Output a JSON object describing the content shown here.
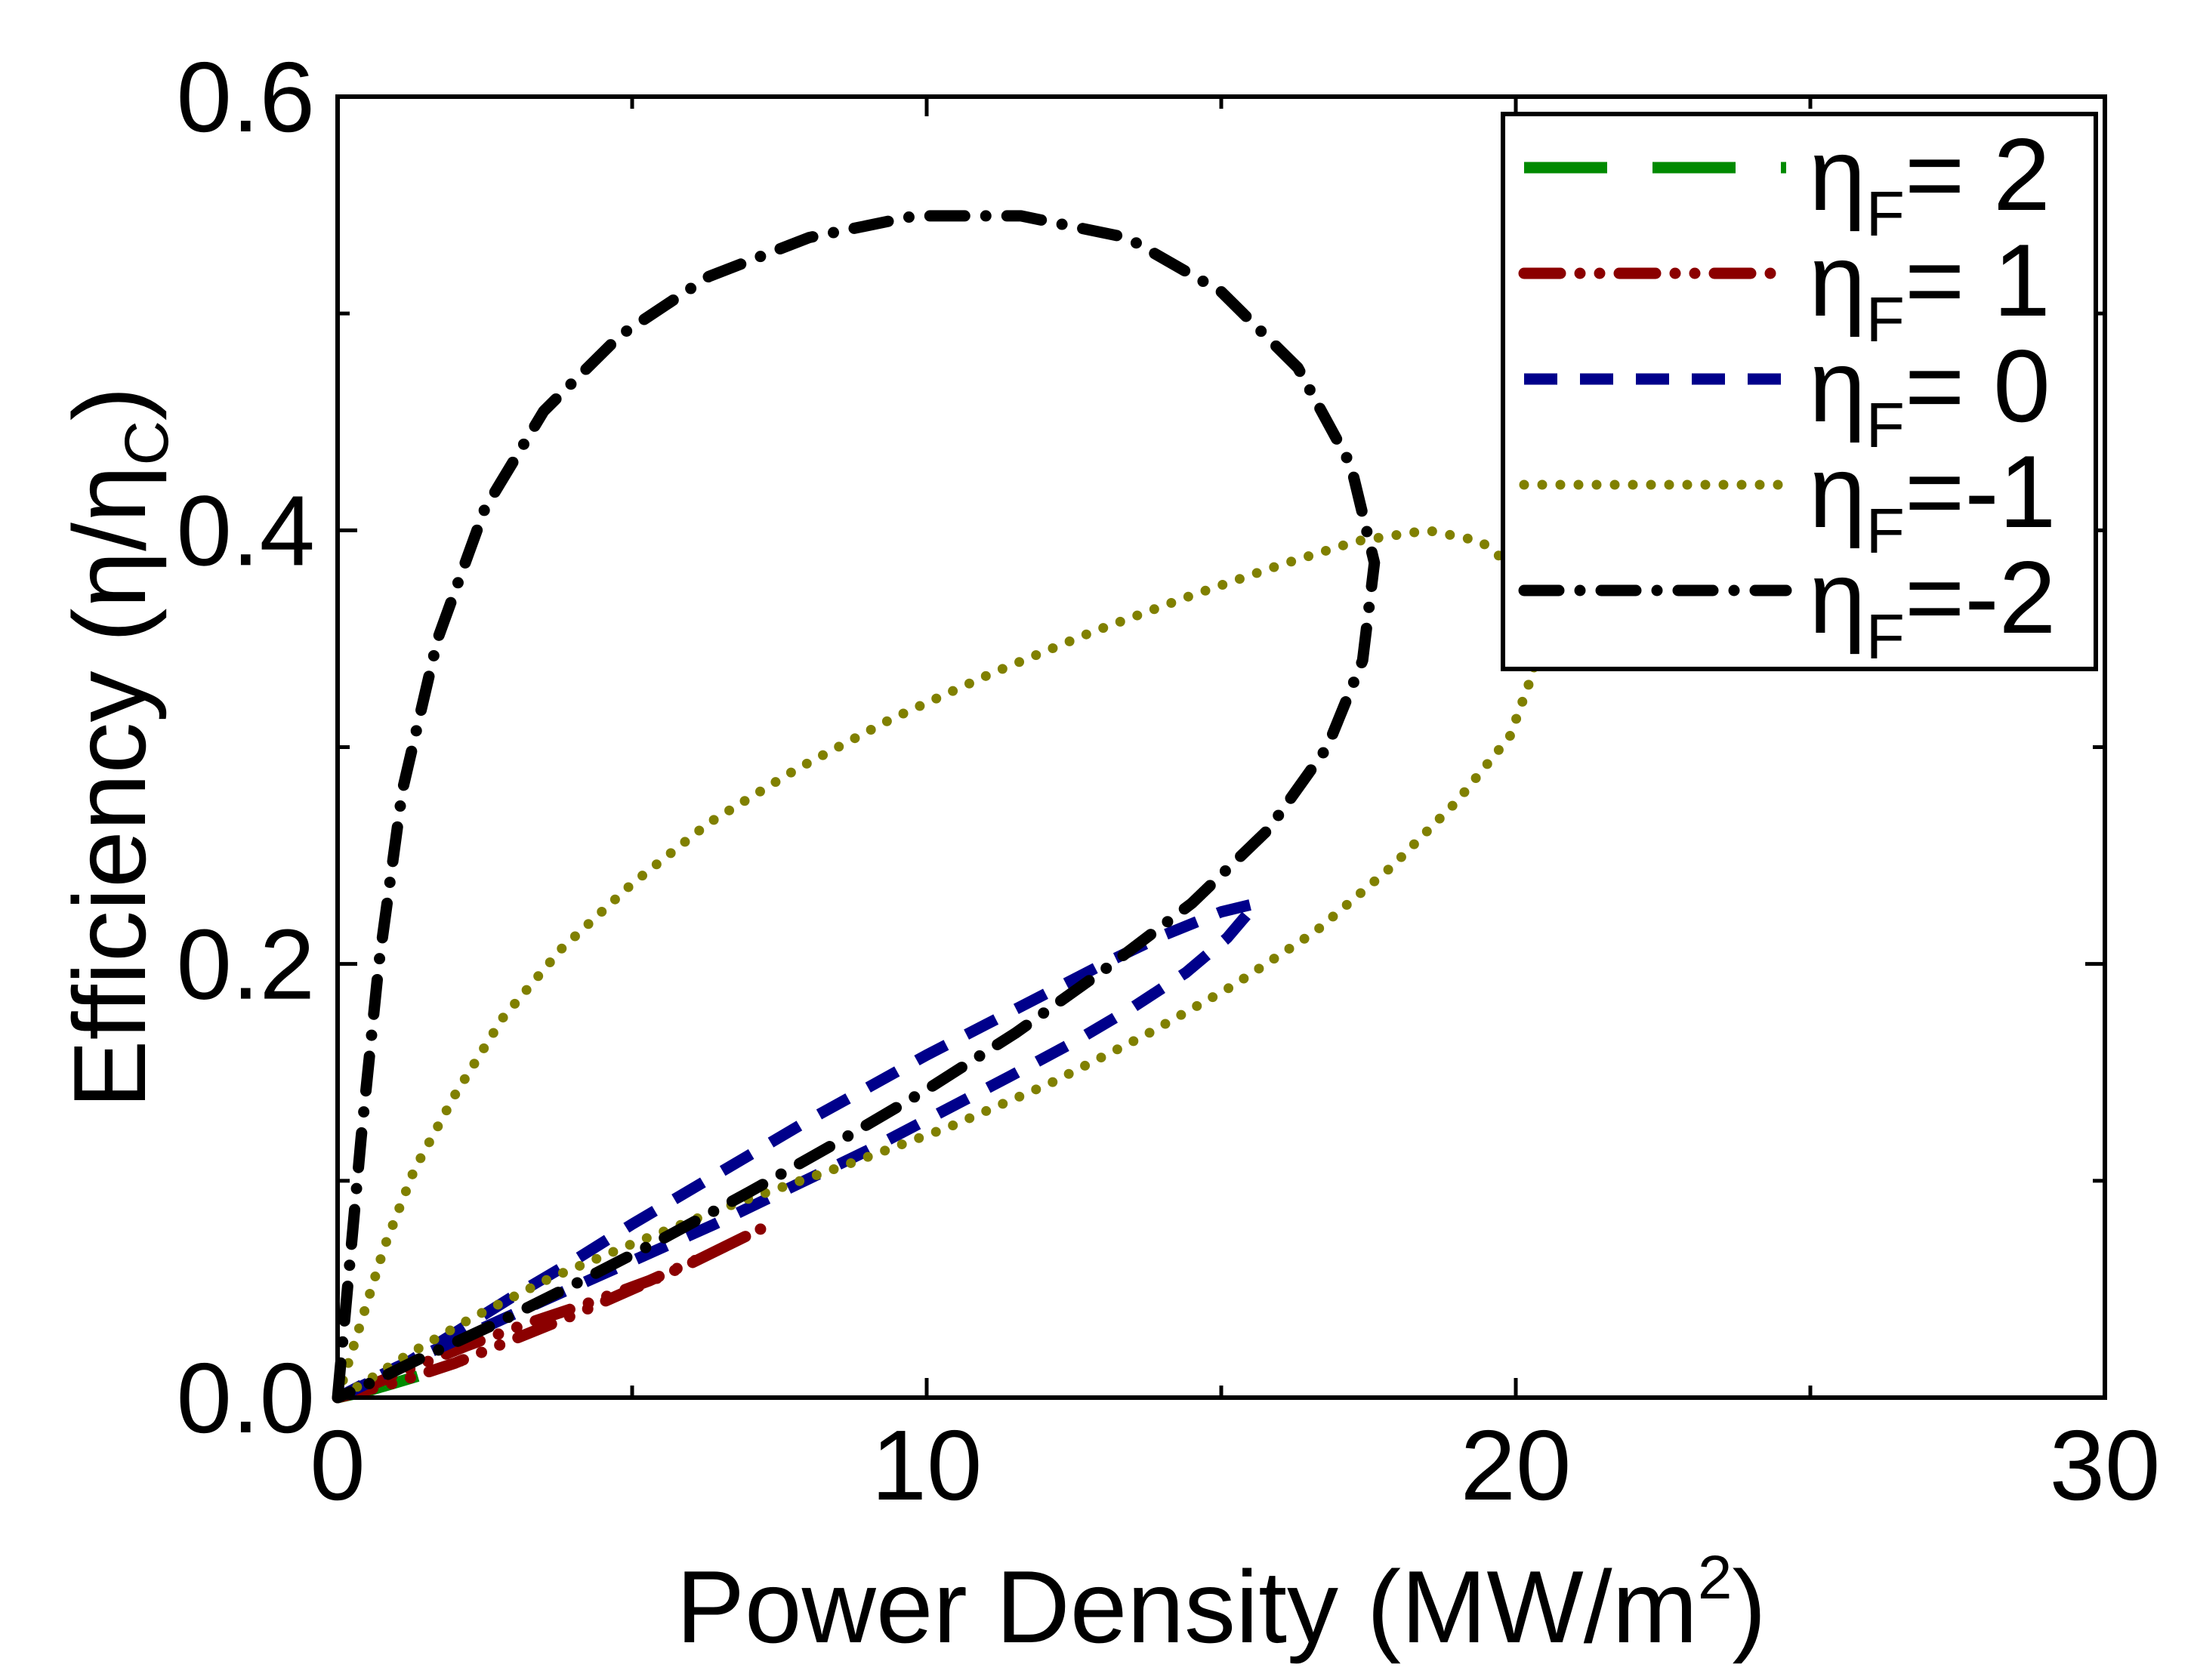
{
  "chart_data": {
    "type": "line",
    "title": "",
    "xlabel": {
      "text": "Power Density (MW/m",
      "sup": "2",
      "tail": ")"
    },
    "ylabel": {
      "text": "Efficiency (η/η",
      "sub": "C",
      "tail": ")"
    },
    "xlim": [
      0,
      30
    ],
    "ylim": [
      0,
      0.6
    ],
    "xticks": [
      0,
      10,
      20,
      30
    ],
    "xtick_labels": [
      "0",
      "10",
      "20",
      "30"
    ],
    "xminor": [
      5,
      15,
      25
    ],
    "yticks": [
      0.0,
      0.2,
      0.4,
      0.6
    ],
    "ytick_labels": [
      "0.0",
      "0.2",
      "0.4",
      "0.6"
    ],
    "yminor": [
      0.1,
      0.3,
      0.5
    ],
    "grid": false,
    "legend_position": "top-right",
    "series": [
      {
        "name": "ηF= 2",
        "label_main": "η",
        "label_sub": "F",
        "label_tail": "= 2",
        "color": "#008a00",
        "dash": "long-dash",
        "x": [
          0,
          0.5,
          1.0,
          1.5,
          2.1
        ],
        "y": [
          0,
          0.003,
          0.007,
          0.011,
          0.017
        ]
      },
      {
        "name": "ηF= 1",
        "label_main": "η",
        "label_sub": "F",
        "label_tail": "= 1",
        "color": "#8b0000",
        "dash": "dash-dot-dot",
        "x": [
          0,
          1,
          2,
          3,
          4,
          5,
          6,
          7.2,
          6.3,
          5.3,
          4.2,
          3.2,
          2.2,
          1.2,
          0.5,
          0
        ],
        "y": [
          0,
          0.007,
          0.016,
          0.027,
          0.038,
          0.05,
          0.062,
          0.078,
          0.066,
          0.054,
          0.043,
          0.034,
          0.024,
          0.013,
          0.005,
          0
        ]
      },
      {
        "name": "ηF= 0",
        "label_main": "η",
        "label_sub": "F",
        "label_tail": "= 0",
        "color": "#00008b",
        "dash": "dash",
        "x": [
          0,
          1,
          2,
          3,
          4,
          5,
          6,
          7,
          8,
          9,
          10,
          11,
          12,
          13,
          14,
          15,
          15.6,
          15.1,
          14.4,
          13.5,
          12.5,
          11.4,
          10.2,
          9.0,
          7.7,
          6.4,
          5.0,
          3.6,
          2.3,
          1.0,
          0
        ],
        "y": [
          0,
          0.013,
          0.03,
          0.047,
          0.063,
          0.08,
          0.096,
          0.112,
          0.128,
          0.143,
          0.158,
          0.172,
          0.186,
          0.2,
          0.213,
          0.224,
          0.228,
          0.212,
          0.196,
          0.18,
          0.164,
          0.148,
          0.131,
          0.114,
          0.097,
          0.08,
          0.063,
          0.046,
          0.03,
          0.014,
          0
        ]
      },
      {
        "name": "ηF=-1",
        "label_main": "η",
        "label_sub": "F",
        "label_tail": "=-1",
        "color": "#808000",
        "dash": "dot",
        "x": [
          0,
          0.4,
          0.8,
          1.3,
          2.0,
          2.8,
          3.8,
          5.0,
          6.3,
          7.8,
          9.4,
          11.1,
          12.8,
          14.5,
          16.0,
          17.3,
          18.5,
          19.4,
          20.1,
          20.4,
          20.3,
          19.9,
          19.0,
          17.9,
          16.6,
          15.2,
          13.7,
          12.1,
          10.4,
          8.6,
          6.8,
          5.1,
          3.6,
          2.3,
          1.2,
          0.4,
          0
        ],
        "y": [
          0,
          0.035,
          0.07,
          0.105,
          0.14,
          0.175,
          0.207,
          0.237,
          0.265,
          0.29,
          0.313,
          0.334,
          0.353,
          0.37,
          0.384,
          0.395,
          0.4,
          0.395,
          0.38,
          0.36,
          0.335,
          0.305,
          0.275,
          0.245,
          0.215,
          0.19,
          0.167,
          0.145,
          0.125,
          0.107,
          0.09,
          0.072,
          0.055,
          0.037,
          0.02,
          0.006,
          0
        ]
      },
      {
        "name": "ηF=-2",
        "label_main": "η",
        "label_sub": "F",
        "label_tail": "=-2",
        "color": "#000000",
        "dash": "dash-dot",
        "x": [
          0,
          0.2,
          0.4,
          0.7,
          1.1,
          1.7,
          2.5,
          3.5,
          4.8,
          6.3,
          8.0,
          9.8,
          11.6,
          13.4,
          15.0,
          16.3,
          17.2,
          17.6,
          17.4,
          16.8,
          15.8,
          14.5,
          13.0,
          11.5,
          10.0,
          8.5,
          7.0,
          5.5,
          4.0,
          2.6,
          1.4,
          0.5,
          0
        ],
        "y": [
          0,
          0.06,
          0.12,
          0.2,
          0.28,
          0.35,
          0.41,
          0.455,
          0.49,
          0.517,
          0.535,
          0.545,
          0.545,
          0.535,
          0.51,
          0.475,
          0.43,
          0.385,
          0.34,
          0.3,
          0.262,
          0.228,
          0.197,
          0.168,
          0.142,
          0.118,
          0.095,
          0.073,
          0.052,
          0.033,
          0.018,
          0.006,
          0
        ]
      }
    ]
  }
}
